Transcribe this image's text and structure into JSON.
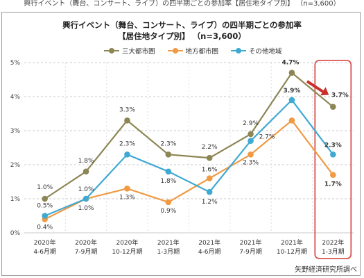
{
  "caption": "興行イベント（舞台、コンサート、ライブ）の四半期ごとの参加率【居住地タイプ別】 （n=3,600）",
  "title_line1": "興行イベント（舞台、コンサート、ライブ）の四半期ごとの参加率",
  "title_line2": "【居住地タイプ別】 （n=3,600）",
  "source": "矢野経済研究所調べ",
  "colors": {
    "series1": "#8c8654",
    "series2": "#f09a44",
    "series3": "#3fa9d2",
    "highlight_box": "#d9534f",
    "arrow": "#c9302c",
    "grid": "#c8c8c8"
  },
  "chart_data": {
    "type": "line",
    "title": "興行イベント（舞台、コンサート、ライブ）の四半期ごとの参加率 【居住地タイプ別】 （n=3,600）",
    "categories": [
      [
        "2020年",
        "4-6月期"
      ],
      [
        "2020年",
        "7-9月期"
      ],
      [
        "2020年",
        "10-12月期"
      ],
      [
        "2021年",
        "1-3月期"
      ],
      [
        "2021年",
        "4-6月期"
      ],
      [
        "2021年",
        "7-9月期"
      ],
      [
        "2021年",
        "10-12月期"
      ],
      [
        "2022年",
        "1-3月期"
      ]
    ],
    "series": [
      {
        "name": "三大都市圏",
        "values": [
          1.0,
          1.8,
          3.3,
          2.3,
          2.2,
          2.9,
          4.7,
          3.7
        ],
        "labels": [
          "1.0%",
          "1.8%",
          "3.3%",
          "2.3%",
          "2.2%",
          "2.9%",
          "4.7%",
          "3.7%"
        ]
      },
      {
        "name": "地方都市圏",
        "values": [
          0.4,
          1.0,
          1.3,
          0.9,
          1.6,
          2.3,
          3.3,
          1.7
        ],
        "labels": [
          "0.4%",
          "1.0%",
          "1.3%",
          "0.9%",
          "1.6%",
          "2.3%",
          "",
          "1.7%"
        ]
      },
      {
        "name": "その他地域",
        "values": [
          0.5,
          1.0,
          2.3,
          1.8,
          1.2,
          2.7,
          3.9,
          2.3
        ],
        "labels": [
          "0.5%",
          "1.0%",
          "2.3%",
          "1.8%",
          "1.2%",
          "2.7%",
          "3.9%",
          "2.3%"
        ]
      }
    ],
    "yticks": [
      "0%",
      "1%",
      "2%",
      "3%",
      "4%",
      "5%"
    ],
    "ylim": [
      0,
      5
    ],
    "grid": true,
    "legend": "top-center",
    "highlight_category_index": 7
  }
}
